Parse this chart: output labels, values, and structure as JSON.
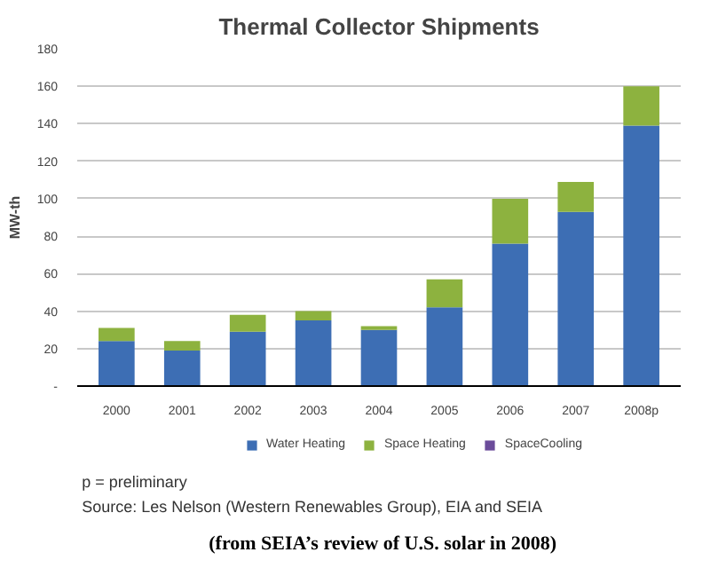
{
  "chart_data": {
    "type": "bar",
    "stacked": true,
    "title": "Thermal Collector Shipments",
    "ylabel": "MW-th",
    "categories": [
      "2000",
      "2001",
      "2002",
      "2003",
      "2004",
      "2005",
      "2006",
      "2007",
      "2008p"
    ],
    "series": [
      {
        "name": "Water Heating",
        "color": "#3d6eb4",
        "values": [
          24,
          19,
          29,
          35,
          30,
          42,
          76,
          93,
          139
        ]
      },
      {
        "name": "Space Heating",
        "color": "#8db23f",
        "values": [
          7,
          5,
          9,
          5,
          2,
          15,
          24,
          16,
          21
        ]
      },
      {
        "name": "SpaceCooling",
        "color": "#6b4c9a",
        "values": [
          0,
          0,
          0,
          0,
          0,
          0,
          0,
          0,
          0
        ]
      }
    ],
    "ylim": [
      0,
      180
    ],
    "yticks": [
      {
        "value": 0,
        "label": "-"
      },
      20,
      40,
      60,
      80,
      100,
      120,
      140,
      160,
      180
    ],
    "grid": "y",
    "legend": "bottom",
    "annotations": [
      "p = preliminary",
      "Source: Les Nelson (Western Renewables Group), EIA and SEIA",
      "(from SEIA’s review of U.S. solar in 2008)"
    ]
  }
}
